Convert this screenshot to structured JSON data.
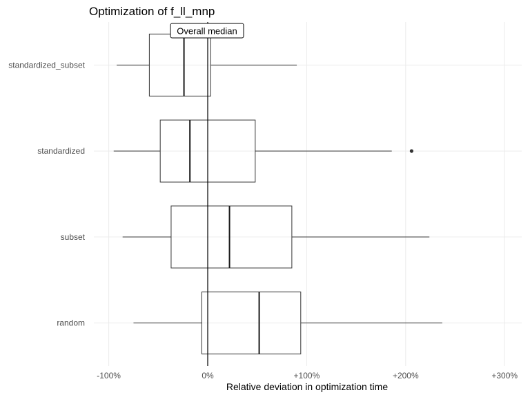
{
  "chart_data": {
    "type": "boxplot",
    "title": "Optimization of f_ll_mnp",
    "xlabel": "Relative deviation in optimization time",
    "ylabel": "",
    "xlim": [
      -110,
      315
    ],
    "x_ticks": [
      -100,
      0,
      100,
      200,
      300
    ],
    "x_tick_labels": [
      "-100%",
      "0%",
      "+100%",
      "+200%",
      "+300%"
    ],
    "grid": true,
    "categories": [
      "standardized_subset",
      "standardized",
      "subset",
      "random"
    ],
    "boxes": [
      {
        "category": "standardized_subset",
        "whisker_low": -92,
        "q1": -59,
        "median": -24,
        "q3": 3,
        "whisker_high": 90,
        "outliers": []
      },
      {
        "category": "standardized",
        "whisker_low": -95,
        "q1": -48,
        "median": -18,
        "q3": 48,
        "whisker_high": 186,
        "outliers": [
          206
        ]
      },
      {
        "category": "subset",
        "whisker_low": -86,
        "q1": -37,
        "median": 22,
        "q3": 85,
        "whisker_high": 224,
        "outliers": []
      },
      {
        "category": "random",
        "whisker_low": -75,
        "q1": -6,
        "median": 52,
        "q3": 94,
        "whisker_high": 237,
        "outliers": []
      }
    ],
    "reference_line": {
      "x": 0,
      "label": "Overall median"
    }
  }
}
